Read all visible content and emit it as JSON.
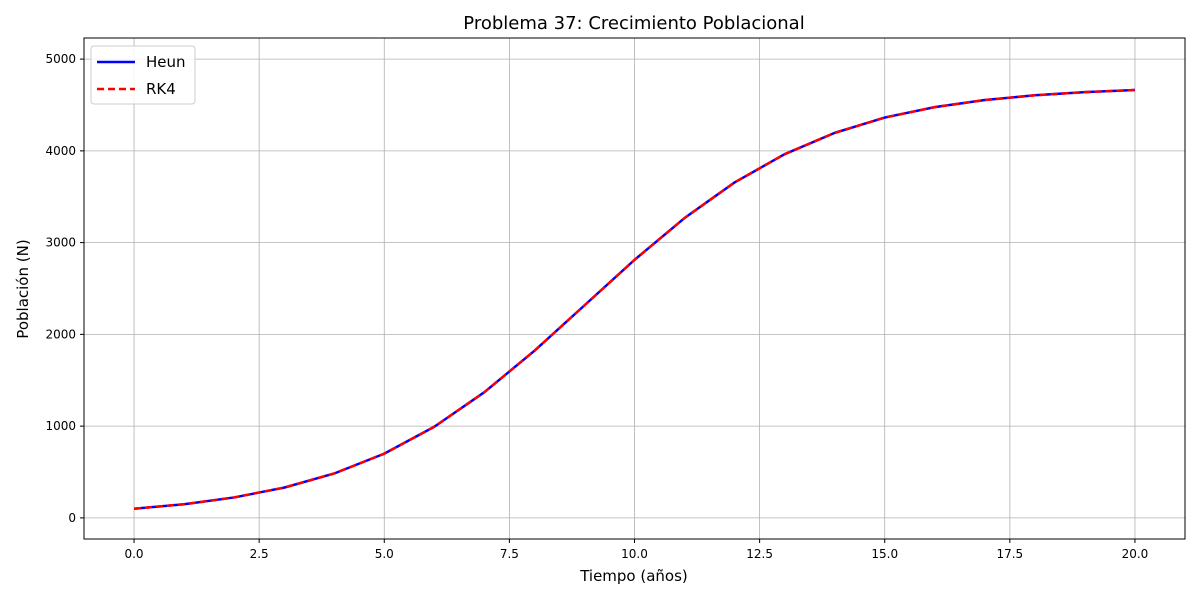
{
  "chart_data": {
    "type": "line",
    "title": "Problema 37: Crecimiento Poblacional",
    "xlabel": "Tiempo (años)",
    "ylabel": "Población (N)",
    "xlim": [
      -1.0,
      21.0
    ],
    "ylim": [
      -230,
      5230
    ],
    "xticks": [
      0.0,
      2.5,
      5.0,
      7.5,
      10.0,
      12.5,
      15.0,
      17.5,
      20.0
    ],
    "xtick_labels": [
      "0.0",
      "2.5",
      "5.0",
      "7.5",
      "10.0",
      "12.5",
      "15.0",
      "17.5",
      "20.0"
    ],
    "yticks": [
      0,
      1000,
      2000,
      3000,
      4000,
      5000
    ],
    "ytick_labels": [
      "0",
      "1000",
      "2000",
      "3000",
      "4000",
      "5000"
    ],
    "grid": true,
    "legend_position": "top-left",
    "x": [
      0,
      1,
      2,
      3,
      4,
      5,
      6,
      7,
      8,
      9,
      10,
      11,
      12,
      13,
      14,
      15,
      16,
      17,
      18,
      19,
      20
    ],
    "series": [
      {
        "name": "Heun",
        "color": "#0000ff",
        "style": "solid",
        "values": [
          100,
          149,
          223,
          330,
          484,
          700,
          993,
          1370,
          1821,
          2316,
          2812,
          3268,
          3656,
          3964,
          4196,
          4363,
          4477,
          4554,
          4606,
          4640,
          4663
        ]
      },
      {
        "name": "RK4",
        "color": "#ff0000",
        "style": "dashed",
        "values": [
          100,
          149,
          223,
          330,
          484,
          700,
          993,
          1370,
          1821,
          2316,
          2812,
          3268,
          3656,
          3964,
          4196,
          4363,
          4477,
          4554,
          4606,
          4640,
          4663
        ]
      }
    ]
  }
}
